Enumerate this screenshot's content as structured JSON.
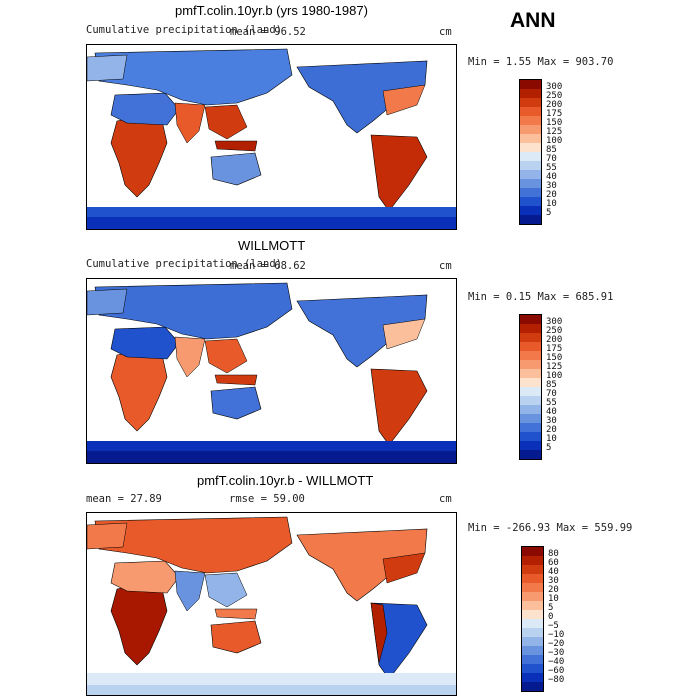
{
  "season": "ANN",
  "panels": [
    {
      "title": "pmfT.colin.10yr.b (yrs 1980-1987)",
      "subtitle": "Cumulative precipitation (land)",
      "stat1": "mean =   96.52",
      "stat2": "",
      "units": "cm",
      "minmax": "Min =    1.55 Max = 903.70",
      "levels": [
        "300",
        "250",
        "200",
        "175",
        "150",
        "125",
        "100",
        "85",
        "70",
        "55",
        "40",
        "30",
        "20",
        "10",
        "5"
      ],
      "colors": [
        "#8b0a00",
        "#b32000",
        "#d13b10",
        "#e85a2a",
        "#f27a4a",
        "#f79a70",
        "#fbbf9c",
        "#fde2cd",
        "#dce9f6",
        "#b9d2f0",
        "#93b4e8",
        "#6a93df",
        "#4272d7",
        "#1f52cc",
        "#0a2fb8",
        "#061a90"
      ]
    },
    {
      "title": "WILLMOTT",
      "subtitle": "Cumulative precipitation (land)",
      "stat1": "mean =   68.62",
      "stat2": "",
      "units": "cm",
      "minmax": "Min =    0.15 Max = 685.91",
      "levels": [
        "300",
        "250",
        "200",
        "175",
        "150",
        "125",
        "100",
        "85",
        "70",
        "55",
        "40",
        "30",
        "20",
        "10",
        "5"
      ],
      "colors": [
        "#8b0a00",
        "#b32000",
        "#d13b10",
        "#e85a2a",
        "#f27a4a",
        "#f79a70",
        "#fbbf9c",
        "#fde2cd",
        "#dce9f6",
        "#b9d2f0",
        "#93b4e8",
        "#6a93df",
        "#4272d7",
        "#1f52cc",
        "#0a2fb8",
        "#061a90"
      ]
    },
    {
      "title": "pmfT.colin.10yr.b - WILLMOTT",
      "subtitle": "",
      "stat1": "mean =   27.89",
      "stat2": "rmse =   59.00",
      "units": "cm",
      "minmax": "Min = -266.93 Max = 559.99",
      "levels": [
        "80",
        "60",
        "40",
        "30",
        "20",
        "10",
        "5",
        "0",
        "−5",
        "−10",
        "−20",
        "−30",
        "−40",
        "−60",
        "−80"
      ],
      "colors": [
        "#8b0a00",
        "#b32000",
        "#d13b10",
        "#e85a2a",
        "#f27a4a",
        "#f79a70",
        "#fbbf9c",
        "#fde2cd",
        "#dce9f6",
        "#b9d2f0",
        "#93b4e8",
        "#6a93df",
        "#4272d7",
        "#1f52cc",
        "#0a2fb8",
        "#061a90"
      ]
    }
  ],
  "chart_data": [
    {
      "type": "heatmap",
      "title": "pmfT.colin.10yr.b (yrs 1980-1987)",
      "subtitle": "Cumulative precipitation (land)",
      "units": "cm",
      "mean": 96.52,
      "min": 1.55,
      "max": 903.7,
      "contour_levels": [
        5,
        10,
        20,
        30,
        40,
        55,
        70,
        85,
        100,
        125,
        150,
        175,
        200,
        250,
        300
      ]
    },
    {
      "type": "heatmap",
      "title": "WILLMOTT",
      "subtitle": "Cumulative precipitation (land)",
      "units": "cm",
      "mean": 68.62,
      "min": 0.15,
      "max": 685.91,
      "contour_levels": [
        5,
        10,
        20,
        30,
        40,
        55,
        70,
        85,
        100,
        125,
        150,
        175,
        200,
        250,
        300
      ]
    },
    {
      "type": "heatmap",
      "title": "pmfT.colin.10yr.b - WILLMOTT",
      "units": "cm",
      "mean": 27.89,
      "rmse": 59.0,
      "min": -266.93,
      "max": 559.99,
      "contour_levels": [
        -80,
        -60,
        -40,
        -30,
        -20,
        -10,
        -5,
        0,
        5,
        10,
        20,
        30,
        40,
        60,
        80
      ]
    }
  ]
}
